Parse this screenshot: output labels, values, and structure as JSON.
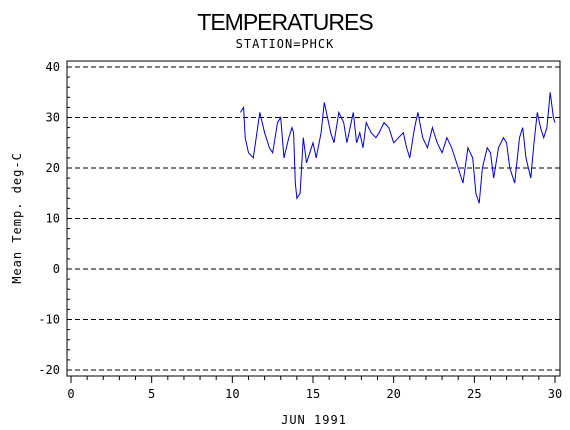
{
  "chart_data": {
    "type": "line",
    "title": "TEMPERATURES",
    "subtitle": "STATION=PHCK",
    "xlabel": "JUN 1991",
    "ylabel": "Mean Temp. deg-C",
    "xlim": [
      0,
      30
    ],
    "ylim": [
      -20,
      40
    ],
    "x_ticks": [
      "0",
      "5",
      "10",
      "15",
      "20",
      "25",
      "30"
    ],
    "y_ticks": [
      "40",
      "30",
      "20",
      "10",
      "0",
      "-10",
      "-20"
    ],
    "grid": "horizontal dashed",
    "line_color": "#0000cc",
    "series": [
      {
        "x": [
          10.5,
          10.7,
          10.8,
          11.0,
          11.3,
          11.7,
          12.0,
          12.3,
          12.5,
          12.8,
          13.0,
          13.2,
          13.5,
          13.7,
          13.8,
          13.9,
          14.0,
          14.2,
          14.4,
          14.6,
          14.8,
          15.0,
          15.2,
          15.5,
          15.7,
          15.9,
          16.1,
          16.3,
          16.6,
          16.9,
          17.1,
          17.3,
          17.5,
          17.7,
          17.9,
          18.1,
          18.3,
          18.6,
          18.9,
          19.1,
          19.4,
          19.7,
          20.0,
          20.3,
          20.6,
          20.8,
          21.0,
          21.3,
          21.5,
          21.8,
          22.1,
          22.4,
          22.7,
          23.0,
          23.3,
          23.6,
          23.9,
          24.1,
          24.3,
          24.6,
          24.9,
          25.1,
          25.3,
          25.5,
          25.8,
          26.0,
          26.2,
          26.5,
          26.8,
          27.0,
          27.2,
          27.5,
          27.8,
          28.0,
          28.2,
          28.5,
          28.7,
          28.9,
          29.1,
          29.3,
          29.5,
          29.7,
          29.9,
          30.0
        ],
        "y": [
          31,
          32,
          26,
          23,
          22,
          31,
          27,
          24,
          23,
          29,
          30,
          22,
          26,
          28,
          27,
          17,
          14,
          15,
          26,
          21,
          23,
          25,
          22,
          27,
          33,
          30,
          27,
          25,
          31,
          29,
          25,
          28,
          31,
          25,
          27,
          24,
          29,
          27,
          26,
          27,
          29,
          28,
          25,
          26,
          27,
          24,
          22,
          28,
          31,
          26,
          24,
          28,
          25,
          23,
          26,
          24,
          21,
          19,
          17,
          24,
          22,
          15,
          13,
          20,
          24,
          23,
          18,
          24,
          26,
          25,
          20,
          17,
          26,
          28,
          22,
          18,
          25,
          31,
          28,
          26,
          28,
          35,
          30,
          29
        ]
      }
    ]
  }
}
